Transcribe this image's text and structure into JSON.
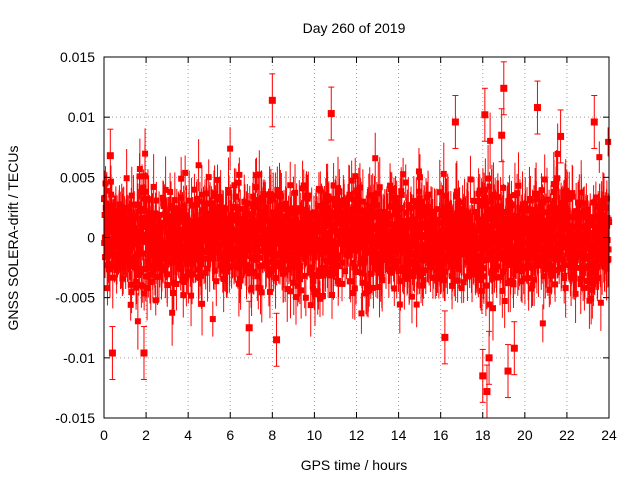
{
  "chart_data": {
    "type": "scatter",
    "title": "Day 260 of 2019",
    "xlabel": "GPS time / hours",
    "ylabel": "GNSS SOLERA-drift / TECUs",
    "xlim": [
      0,
      24
    ],
    "ylim": [
      -0.015,
      0.015
    ],
    "x_ticks": [
      0,
      2,
      4,
      6,
      8,
      10,
      12,
      14,
      16,
      18,
      20,
      22,
      24
    ],
    "y_ticks": [
      -0.015,
      -0.01,
      -0.005,
      0,
      0.005,
      0.01,
      0.015
    ],
    "x_tick_labels": [
      "0",
      "2",
      "4",
      "6",
      "8",
      "10",
      "12",
      "14",
      "16",
      "18",
      "20",
      "22",
      "24"
    ],
    "y_tick_labels": [
      "-0.015",
      "-0.01",
      "-0.005",
      "0",
      "0.005",
      "0.01",
      "0.015"
    ],
    "grid": true,
    "error_bars": true,
    "marker": "square",
    "series": [
      {
        "color": "#ff0000",
        "dense_band": {
          "x_start": 0,
          "x_end": 24,
          "y_typical_min": -0.005,
          "y_typical_max": 0.005
        },
        "outliers": [
          {
            "x": 0.4,
            "y": -0.0096
          },
          {
            "x": 1.9,
            "y": -0.0096
          },
          {
            "x": 0.3,
            "y": 0.0068
          },
          {
            "x": 8.0,
            "y": 0.0114
          },
          {
            "x": 10.8,
            "y": 0.0103
          },
          {
            "x": 16.7,
            "y": 0.0096
          },
          {
            "x": 18.0,
            "y": -0.0115
          },
          {
            "x": 18.2,
            "y": -0.0128
          },
          {
            "x": 18.1,
            "y": 0.0102
          },
          {
            "x": 18.3,
            "y": -0.01
          },
          {
            "x": 18.9,
            "y": 0.0085
          },
          {
            "x": 19.0,
            "y": 0.0124
          },
          {
            "x": 19.2,
            "y": -0.0111
          },
          {
            "x": 19.5,
            "y": -0.0092
          },
          {
            "x": 20.6,
            "y": 0.0108
          },
          {
            "x": 21.7,
            "y": 0.0084
          },
          {
            "x": 23.3,
            "y": 0.0096
          },
          {
            "x": 16.2,
            "y": -0.0083
          },
          {
            "x": 6.9,
            "y": -0.0075
          },
          {
            "x": 8.2,
            "y": -0.0085
          }
        ]
      }
    ]
  }
}
